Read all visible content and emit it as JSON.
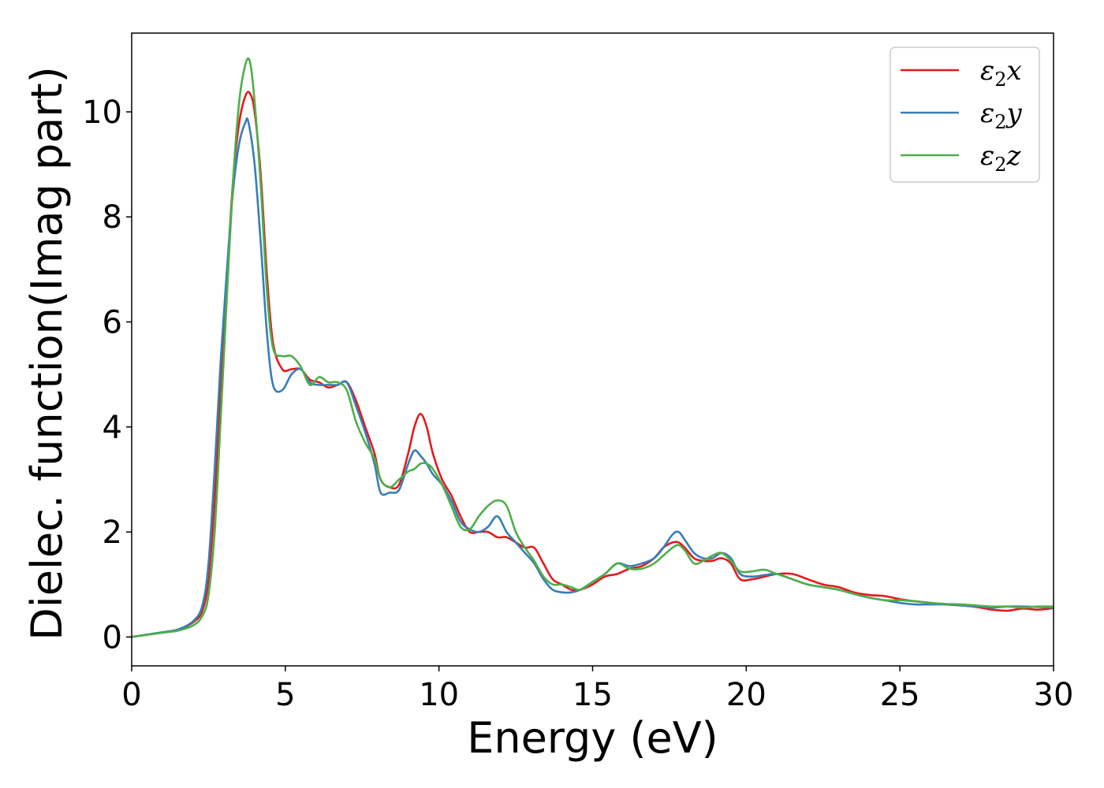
{
  "chart_data": {
    "type": "line",
    "title": "",
    "xlabel": "Energy (eV)",
    "ylabel": "Dielec. function(Imag part)",
    "xlim": [
      0,
      30
    ],
    "ylim": [
      -0.55,
      11.5
    ],
    "xticks": [
      0,
      5,
      10,
      15,
      20,
      25,
      30
    ],
    "yticks": [
      0,
      2,
      4,
      6,
      8,
      10
    ],
    "grid": false,
    "legend_position": "upper right",
    "series": [
      {
        "name": "ε2x",
        "legend_base": "ε",
        "legend_sub": "2",
        "legend_var": "x",
        "color": "#e41a1c",
        "x": [
          0,
          1,
          1.5,
          2,
          2.3,
          2.5,
          2.7,
          2.9,
          3.1,
          3.3,
          3.5,
          3.7,
          3.85,
          4,
          4.2,
          4.4,
          4.6,
          4.9,
          5.2,
          5.5,
          5.8,
          6.1,
          6.4,
          6.7,
          7,
          7.3,
          7.6,
          7.9,
          8.1,
          8.4,
          8.7,
          9,
          9.2,
          9.4,
          9.6,
          9.8,
          10.1,
          10.4,
          10.7,
          11,
          11.3,
          11.6,
          11.9,
          12.2,
          12.5,
          12.8,
          13.1,
          13.4,
          13.7,
          14,
          14.3,
          14.6,
          15,
          15.4,
          15.8,
          16.2,
          16.6,
          17,
          17.3,
          17.6,
          17.8,
          18,
          18.3,
          18.6,
          18.9,
          19.2,
          19.5,
          19.8,
          20.2,
          20.6,
          21,
          21.5,
          22,
          22.5,
          23,
          23.5,
          24,
          24.5,
          25,
          25.5,
          26,
          26.5,
          27,
          27.5,
          28,
          28.5,
          29,
          29.5,
          30
        ],
        "y": [
          0,
          0.09,
          0.14,
          0.28,
          0.5,
          1.1,
          2.6,
          4.7,
          6.8,
          8.7,
          9.8,
          10.3,
          10.35,
          10.0,
          8.8,
          6.9,
          5.6,
          5.1,
          5.1,
          5.1,
          4.9,
          4.85,
          4.75,
          4.8,
          4.85,
          4.5,
          4.0,
          3.5,
          3.0,
          2.85,
          2.9,
          3.5,
          4.0,
          4.25,
          4.0,
          3.5,
          3.0,
          2.7,
          2.3,
          2.0,
          2.0,
          2.0,
          1.9,
          1.9,
          1.8,
          1.7,
          1.7,
          1.4,
          1.1,
          1.0,
          0.9,
          0.9,
          1.0,
          1.15,
          1.2,
          1.3,
          1.35,
          1.5,
          1.7,
          1.8,
          1.8,
          1.7,
          1.5,
          1.45,
          1.45,
          1.5,
          1.4,
          1.1,
          1.1,
          1.15,
          1.2,
          1.2,
          1.1,
          1.0,
          0.95,
          0.85,
          0.8,
          0.78,
          0.72,
          0.68,
          0.65,
          0.62,
          0.6,
          0.57,
          0.52,
          0.5,
          0.54,
          0.52,
          0.55
        ]
      },
      {
        "name": "ε2y",
        "legend_base": "ε",
        "legend_sub": "2",
        "legend_var": "y",
        "color": "#377eb8",
        "x": [
          0,
          1,
          1.5,
          2,
          2.3,
          2.5,
          2.7,
          2.9,
          3.1,
          3.3,
          3.5,
          3.7,
          3.8,
          4,
          4.2,
          4.4,
          4.6,
          4.9,
          5.2,
          5.5,
          5.8,
          6.1,
          6.4,
          6.7,
          7,
          7.3,
          7.6,
          7.9,
          8.1,
          8.4,
          8.7,
          9,
          9.2,
          9.4,
          9.6,
          9.8,
          10.1,
          10.4,
          10.7,
          11,
          11.3,
          11.6,
          11.9,
          12.2,
          12.5,
          12.8,
          13.1,
          13.4,
          13.7,
          14,
          14.3,
          14.6,
          15,
          15.4,
          15.8,
          16.2,
          16.6,
          17,
          17.3,
          17.6,
          17.8,
          18,
          18.3,
          18.6,
          18.9,
          19.2,
          19.5,
          19.8,
          20.2,
          20.6,
          21,
          21.5,
          22,
          22.5,
          23,
          23.5,
          24,
          24.5,
          25,
          25.5,
          26,
          26.5,
          27,
          27.5,
          28,
          28.5,
          29,
          29.5,
          30
        ],
        "y": [
          0,
          0.09,
          0.14,
          0.3,
          0.6,
          1.4,
          3.2,
          5.3,
          7.0,
          8.5,
          9.4,
          9.8,
          9.8,
          9.0,
          7.5,
          5.8,
          4.8,
          4.7,
          5.0,
          5.1,
          4.85,
          4.8,
          4.8,
          4.8,
          4.85,
          4.4,
          3.9,
          3.3,
          2.75,
          2.75,
          2.8,
          3.3,
          3.55,
          3.45,
          3.3,
          3.1,
          2.9,
          2.6,
          2.2,
          2.05,
          2.0,
          2.1,
          2.3,
          2.0,
          1.8,
          1.6,
          1.4,
          1.1,
          0.9,
          0.85,
          0.85,
          0.9,
          1.05,
          1.2,
          1.4,
          1.35,
          1.4,
          1.5,
          1.7,
          1.95,
          2.0,
          1.85,
          1.6,
          1.5,
          1.5,
          1.6,
          1.5,
          1.2,
          1.15,
          1.18,
          1.2,
          1.1,
          1.0,
          0.95,
          0.9,
          0.82,
          0.75,
          0.7,
          0.65,
          0.62,
          0.62,
          0.62,
          0.6,
          0.58,
          0.56,
          0.58,
          0.58,
          0.57,
          0.56
        ]
      },
      {
        "name": "ε2z",
        "legend_base": "ε",
        "legend_sub": "2",
        "legend_var": "z",
        "color": "#4daf4a",
        "x": [
          0,
          1,
          1.5,
          2,
          2.3,
          2.5,
          2.7,
          2.9,
          3.1,
          3.3,
          3.5,
          3.7,
          3.85,
          4,
          4.2,
          4.4,
          4.6,
          4.9,
          5.2,
          5.5,
          5.8,
          6.1,
          6.4,
          6.7,
          7,
          7.3,
          7.6,
          7.9,
          8.1,
          8.4,
          8.7,
          9,
          9.2,
          9.4,
          9.6,
          9.8,
          10.1,
          10.4,
          10.7,
          11,
          11.3,
          11.6,
          11.9,
          12.2,
          12.5,
          12.8,
          13.1,
          13.4,
          13.7,
          14,
          14.3,
          14.6,
          15,
          15.4,
          15.8,
          16.2,
          16.6,
          17,
          17.3,
          17.6,
          17.8,
          18,
          18.3,
          18.6,
          18.9,
          19.2,
          19.5,
          19.8,
          20.2,
          20.6,
          21,
          21.5,
          22,
          22.5,
          23,
          23.5,
          24,
          24.5,
          25,
          25.5,
          26,
          26.5,
          27,
          27.5,
          28,
          28.5,
          29,
          29.5,
          30
        ],
        "y": [
          0,
          0.08,
          0.12,
          0.22,
          0.4,
          0.8,
          2.0,
          4.2,
          6.5,
          8.7,
          10.2,
          10.9,
          10.95,
          10.2,
          8.6,
          6.6,
          5.5,
          5.35,
          5.35,
          5.15,
          4.8,
          4.95,
          4.85,
          4.85,
          4.7,
          4.1,
          3.7,
          3.4,
          3.0,
          2.85,
          3.0,
          3.15,
          3.2,
          3.3,
          3.3,
          3.2,
          2.9,
          2.5,
          2.1,
          2.05,
          2.3,
          2.5,
          2.6,
          2.5,
          2.0,
          1.7,
          1.45,
          1.15,
          1.0,
          1.0,
          0.95,
          0.9,
          1.05,
          1.2,
          1.4,
          1.3,
          1.3,
          1.4,
          1.55,
          1.7,
          1.75,
          1.65,
          1.4,
          1.45,
          1.55,
          1.6,
          1.45,
          1.25,
          1.25,
          1.28,
          1.2,
          1.1,
          1.0,
          0.95,
          0.9,
          0.82,
          0.75,
          0.7,
          0.7,
          0.68,
          0.65,
          0.63,
          0.62,
          0.6,
          0.58,
          0.58,
          0.56,
          0.58,
          0.58
        ]
      }
    ]
  }
}
